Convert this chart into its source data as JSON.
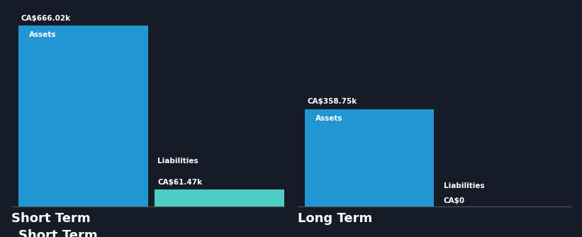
{
  "background_color": "#161c27",
  "text_color": "#ffffff",
  "sections": [
    "Short Term",
    "Long Term"
  ],
  "short_term": {
    "assets_val": 666.02,
    "liabilities_val": 61.47,
    "assets_display": "CA$666.02k",
    "liabilities_display": "CA$61.47k",
    "assets_color": "#2196d3",
    "liabilities_color": "#4ecdc4"
  },
  "long_term": {
    "assets_val": 358.75,
    "liabilities_val": 0,
    "assets_display": "CA$358.75k",
    "liabilities_display": "CA$0",
    "assets_color": "#2196d3",
    "liabilities_color": "#2196d3"
  },
  "max_value": 700,
  "bar_label_fontsize": 7.5,
  "value_label_fontsize": 7.5,
  "section_title_fontsize": 13
}
